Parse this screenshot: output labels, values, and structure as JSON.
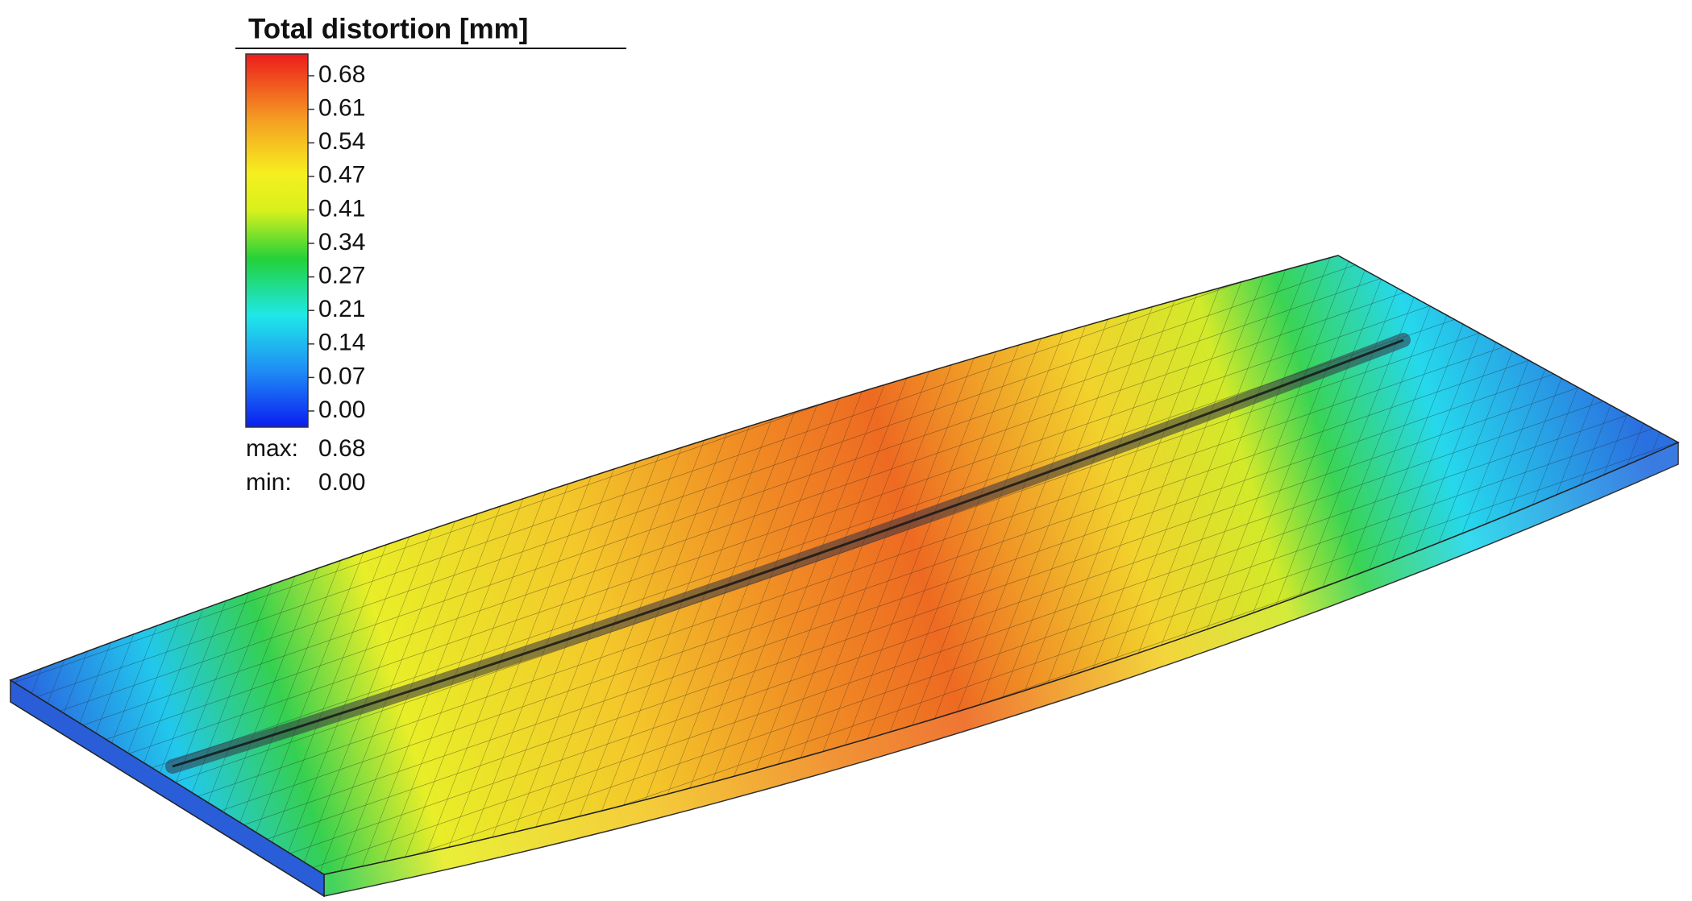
{
  "legend": {
    "title": "Total distortion [mm]",
    "ticks": [
      "0.68",
      "0.61",
      "0.54",
      "0.47",
      "0.41",
      "0.34",
      "0.27",
      "0.21",
      "0.14",
      "0.07",
      "0.00"
    ],
    "max_label": "max:",
    "max_value": "0.68",
    "min_label": "min:",
    "min_value": "0.00"
  }
}
